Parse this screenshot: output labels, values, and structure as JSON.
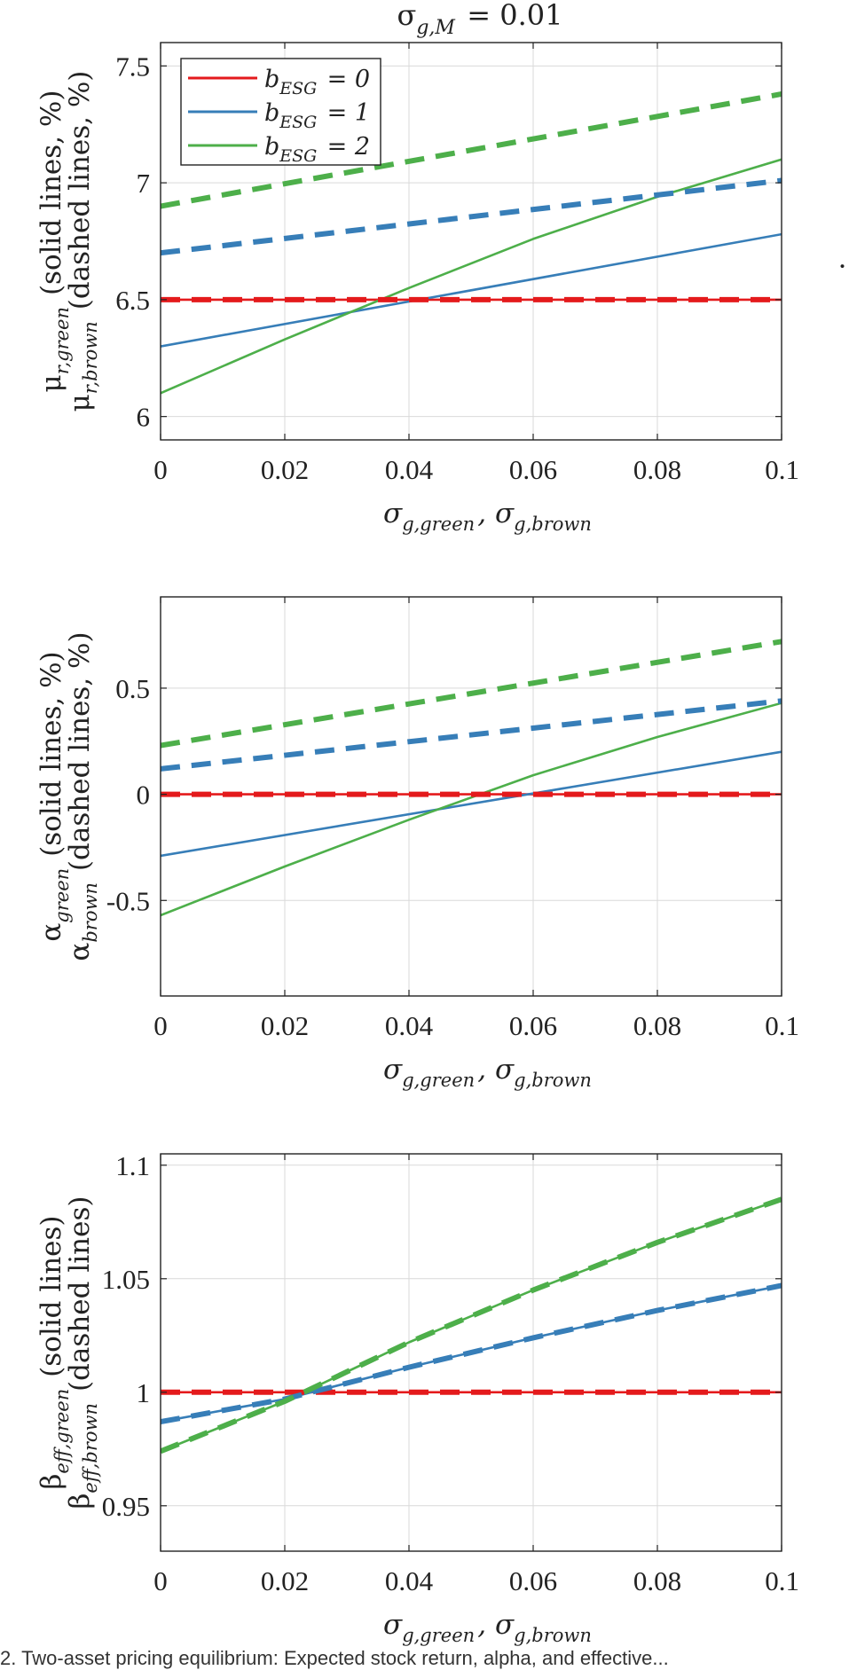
{
  "figure": {
    "title": "σ_{g,M} = 0.01",
    "colors": {
      "b0": "#e41a1c",
      "b1": "#377eb8",
      "b2": "#4daf4a",
      "grid": "#d9d9d9",
      "axis": "#222222"
    },
    "caption": "2. Two-asset pricing equilibrium: Expected stock return, alpha, and effective..."
  },
  "legend": [
    {
      "label": "b_{ESG} = 0",
      "color": "#e41a1c"
    },
    {
      "label": "b_{ESG} = 1",
      "color": "#377eb8"
    },
    {
      "label": "b_{ESG} = 2",
      "color": "#4daf4a"
    }
  ],
  "chart_data": [
    {
      "type": "line",
      "title": "σ_{g,M} = 0.01",
      "xlabel": "σ_{g,green}, σ_{g,brown}",
      "ylabel_line1": "μ_{r,green} (solid lines, %)",
      "ylabel_line2": "μ_{r,brown} (dashed lines, %)",
      "xlim": [
        0,
        0.1
      ],
      "ylim": [
        5.9,
        7.6
      ],
      "xticks": [
        0,
        0.02,
        0.04,
        0.06,
        0.08,
        0.1
      ],
      "xtick_labels": [
        "0",
        "0.02",
        "0.04",
        "0.06",
        "0.08",
        "0.1"
      ],
      "yticks": [
        6,
        6.5,
        7,
        7.5
      ],
      "ytick_labels": [
        "6",
        "6.5",
        "7",
        "7.5"
      ],
      "grid": true,
      "legend_position": "top-left",
      "series": [
        {
          "name": "b_{ESG} = 0",
          "style": "solid",
          "color": "#e41a1c",
          "x": [
            0,
            0.1
          ],
          "y": [
            6.5,
            6.5
          ]
        },
        {
          "name": "b_{ESG} = 1",
          "style": "solid",
          "color": "#377eb8",
          "x": [
            0,
            0.1
          ],
          "y": [
            6.3,
            6.78
          ]
        },
        {
          "name": "b_{ESG} = 2",
          "style": "solid",
          "color": "#4daf4a",
          "x": [
            0,
            0.02,
            0.04,
            0.06,
            0.08,
            0.1
          ],
          "y": [
            6.1,
            6.33,
            6.55,
            6.76,
            6.94,
            7.1
          ]
        },
        {
          "style": "dashed",
          "color": "#e41a1c",
          "x": [
            0,
            0.1
          ],
          "y": [
            6.5,
            6.5
          ]
        },
        {
          "style": "dashed",
          "color": "#377eb8",
          "x": [
            0,
            0.1
          ],
          "y": [
            6.7,
            7.01
          ]
        },
        {
          "style": "dashed",
          "color": "#4daf4a",
          "x": [
            0,
            0.1
          ],
          "y": [
            6.9,
            7.38
          ]
        }
      ]
    },
    {
      "type": "line",
      "xlabel": "σ_{g,green}, σ_{g,brown}",
      "ylabel_line1": "α_{green} (solid lines, %)",
      "ylabel_line2": "α_{brown} (dashed lines, %)",
      "xlim": [
        0,
        0.1
      ],
      "ylim": [
        -0.95,
        0.93
      ],
      "xticks": [
        0,
        0.02,
        0.04,
        0.06,
        0.08,
        0.1
      ],
      "xtick_labels": [
        "0",
        "0.02",
        "0.04",
        "0.06",
        "0.08",
        "0.1"
      ],
      "yticks": [
        -0.5,
        0,
        0.5
      ],
      "ytick_labels": [
        "-0.5",
        "0",
        "0.5"
      ],
      "grid": true,
      "series": [
        {
          "style": "solid",
          "color": "#e41a1c",
          "x": [
            0,
            0.1
          ],
          "y": [
            0,
            0
          ]
        },
        {
          "style": "solid",
          "color": "#377eb8",
          "x": [
            0,
            0.1
          ],
          "y": [
            -0.29,
            0.2
          ]
        },
        {
          "style": "solid",
          "color": "#4daf4a",
          "x": [
            0,
            0.02,
            0.04,
            0.06,
            0.08,
            0.1
          ],
          "y": [
            -0.57,
            -0.34,
            -0.12,
            0.09,
            0.27,
            0.43
          ]
        },
        {
          "style": "dashed",
          "color": "#e41a1c",
          "x": [
            0,
            0.1
          ],
          "y": [
            0,
            0
          ]
        },
        {
          "style": "dashed",
          "color": "#377eb8",
          "x": [
            0,
            0.1
          ],
          "y": [
            0.12,
            0.44
          ]
        },
        {
          "style": "dashed",
          "color": "#4daf4a",
          "x": [
            0,
            0.1
          ],
          "y": [
            0.23,
            0.72
          ]
        }
      ]
    },
    {
      "type": "line",
      "xlabel": "σ_{g,green}, σ_{g,brown}",
      "ylabel_line1": "β_{eff,green} (solid lines)",
      "ylabel_line2": "β_{eff,brown} (dashed lines)",
      "xlim": [
        0,
        0.1
      ],
      "ylim": [
        0.93,
        1.105
      ],
      "xticks": [
        0,
        0.02,
        0.04,
        0.06,
        0.08,
        0.1
      ],
      "xtick_labels": [
        "0",
        "0.02",
        "0.04",
        "0.06",
        "0.08",
        "0.1"
      ],
      "yticks": [
        0.95,
        1,
        1.05,
        1.1
      ],
      "ytick_labels": [
        "0.95",
        "1",
        "1.05",
        "1.1"
      ],
      "grid": true,
      "series": [
        {
          "style": "solid",
          "color": "#e41a1c",
          "x": [
            0,
            0.1
          ],
          "y": [
            1,
            1
          ]
        },
        {
          "style": "solid",
          "color": "#377eb8",
          "x": [
            0,
            0.02,
            0.04,
            0.06,
            0.08,
            0.1
          ],
          "y": [
            0.987,
            0.997,
            1.011,
            1.024,
            1.036,
            1.047
          ]
        },
        {
          "style": "solid",
          "color": "#4daf4a",
          "x": [
            0,
            0.02,
            0.04,
            0.06,
            0.08,
            0.1
          ],
          "y": [
            0.974,
            0.996,
            1.022,
            1.045,
            1.066,
            1.085
          ]
        },
        {
          "style": "dashed",
          "color": "#e41a1c",
          "x": [
            0,
            0.1
          ],
          "y": [
            1,
            1
          ]
        },
        {
          "style": "dashed",
          "color": "#377eb8",
          "x": [
            0,
            0.02,
            0.04,
            0.06,
            0.08,
            0.1
          ],
          "y": [
            0.987,
            0.997,
            1.011,
            1.024,
            1.036,
            1.047
          ]
        },
        {
          "style": "dashed",
          "color": "#4daf4a",
          "x": [
            0,
            0.02,
            0.04,
            0.06,
            0.08,
            0.1
          ],
          "y": [
            0.974,
            0.996,
            1.022,
            1.045,
            1.066,
            1.085
          ]
        }
      ]
    }
  ]
}
